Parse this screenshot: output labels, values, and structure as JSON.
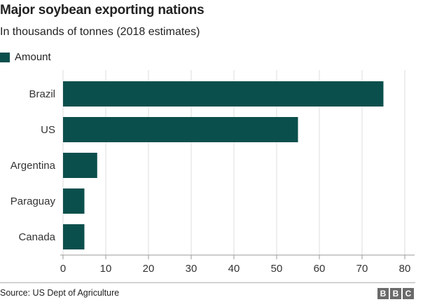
{
  "chart_data": {
    "type": "bar",
    "orientation": "horizontal",
    "title": "Major soybean exporting nations",
    "subtitle": "In thousands of tonnes (2018 estimates)",
    "categories": [
      "Brazil",
      "US",
      "Argentina",
      "Paraguay",
      "Canada"
    ],
    "series": [
      {
        "name": "Amount",
        "values": [
          75,
          55,
          8,
          5,
          5
        ]
      }
    ],
    "xlim": [
      0,
      80
    ],
    "xticks": [
      0,
      10,
      20,
      30,
      40,
      50,
      60,
      70,
      80
    ],
    "grid": "vertical",
    "legend": "top-left",
    "bar_color": "#0b4f4c"
  },
  "footer": {
    "source": "Source: US Dept of Agriculture",
    "logo_letters": [
      "B",
      "B",
      "C"
    ]
  }
}
